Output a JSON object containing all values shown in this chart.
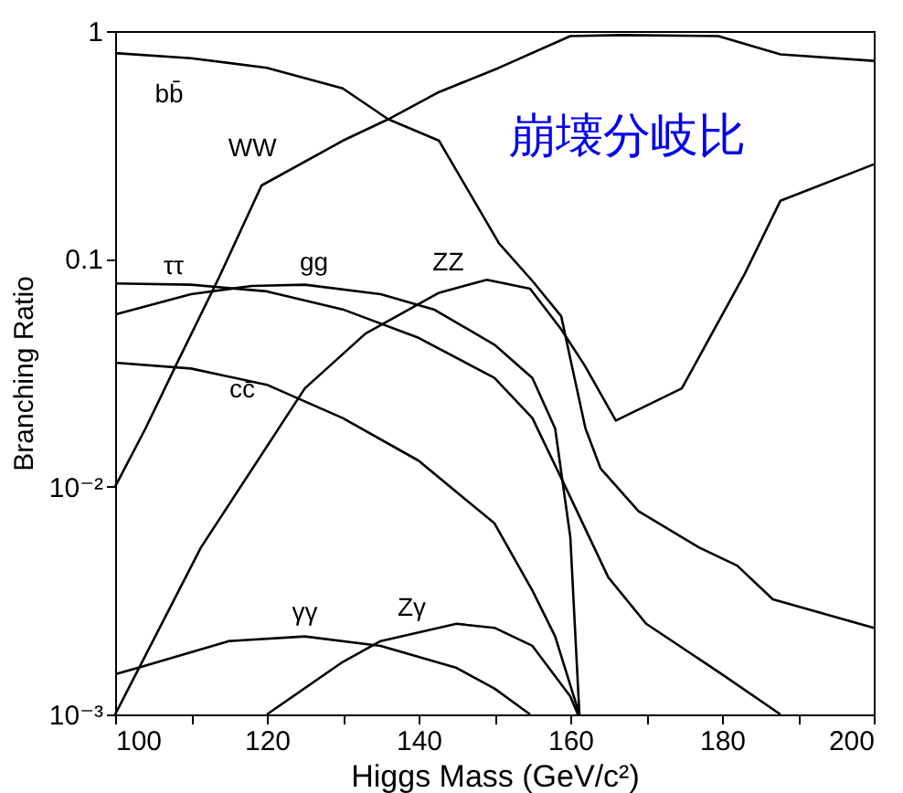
{
  "chart_data": {
    "type": "line",
    "xlabel": "Higgs Mass (GeV/c²)",
    "ylabel": "Branching Ratio",
    "annotations": [
      "崩壊分岐比"
    ],
    "log": true,
    "grid": false,
    "line_style": "solid",
    "marker": "none",
    "xlim": [
      100,
      200
    ],
    "xticks": [
      100,
      {
        "value": 110,
        "label": null
      },
      120,
      {
        "value": 130,
        "label": null
      },
      140,
      {
        "value": 150,
        "label": null
      },
      160,
      {
        "value": 170,
        "label": null
      },
      180,
      {
        "value": 190,
        "label": null
      },
      200
    ],
    "ylim": [
      0.001,
      1
    ],
    "yticks": [
      {
        "value": 0.001,
        "label": "10⁻³"
      },
      {
        "value": 0.01,
        "label": "10⁻²"
      },
      0.1,
      1
    ],
    "series": [
      {
        "name": "bb̄",
        "color": "#000000",
        "x": [
          100,
          110,
          120,
          130,
          136,
          142.7,
          150.6,
          155,
          158.8,
          160.2,
          162,
          164,
          169,
          177,
          182,
          186.7,
          200
        ],
        "values": [
          0.8,
          0.76,
          0.69,
          0.56,
          0.41,
          0.33,
          0.117,
          0.08,
          0.056,
          0.034,
          0.018,
          0.012,
          0.0078,
          0.0054,
          0.0045,
          0.0032,
          0.0024
        ]
      },
      {
        "name": "WW",
        "color": "#000000",
        "x": [
          100,
          104,
          108,
          113.7,
          119.3,
          130,
          136,
          142.7,
          150.6,
          160,
          166.7,
          179.5,
          187.7,
          200
        ],
        "values": [
          0.01,
          0.018,
          0.034,
          0.083,
          0.21,
          0.33,
          0.41,
          0.54,
          0.69,
          0.95,
          0.96,
          0.95,
          0.79,
          0.74
        ]
      },
      {
        "name": "ττ",
        "color": "#000000",
        "x": [
          100,
          110,
          120,
          130,
          140,
          150,
          155,
          160,
          165,
          170,
          180,
          187.7
        ],
        "values": [
          0.078,
          0.077,
          0.072,
          0.06,
          0.045,
          0.03,
          0.02,
          0.009,
          0.004,
          0.0025,
          0.0015,
          0.001
        ]
      },
      {
        "name": "gg",
        "color": "#000000",
        "x": [
          100,
          110,
          118,
          125,
          135,
          142,
          150,
          155,
          158,
          160,
          161.2
        ],
        "values": [
          0.057,
          0.07,
          0.076,
          0.077,
          0.07,
          0.06,
          0.042,
          0.03,
          0.018,
          0.006,
          0.001
        ]
      },
      {
        "name": "ZZ",
        "color": "#000000",
        "x": [
          100,
          111.3,
          125,
          133,
          142.7,
          149,
          154.7,
          158.8,
          161.9,
          166,
          174.7,
          183,
          187.7,
          200
        ],
        "values": [
          0.001,
          0.0054,
          0.027,
          0.047,
          0.071,
          0.081,
          0.074,
          0.049,
          0.034,
          0.0195,
          0.027,
          0.086,
          0.18,
          0.26
        ]
      },
      {
        "name": "cc̄",
        "color": "#000000",
        "x": [
          100,
          110,
          120,
          130,
          140,
          150,
          155,
          158,
          161.2
        ],
        "values": [
          0.035,
          0.033,
          0.028,
          0.02,
          0.013,
          0.0069,
          0.0035,
          0.0022,
          0.001
        ]
      },
      {
        "name": "γγ",
        "color": "#000000",
        "x": [
          100,
          103,
          115,
          125,
          135,
          145,
          150,
          154.7
        ],
        "values": [
          0.0015,
          0.0016,
          0.0021,
          0.0022,
          0.002,
          0.0016,
          0.0013,
          0.001
        ]
      },
      {
        "name": "Zγ",
        "color": "#000000",
        "x": [
          120,
          130,
          135,
          145,
          150,
          155,
          160,
          161
        ],
        "values": [
          0.001,
          0.0017,
          0.0021,
          0.0025,
          0.0024,
          0.002,
          0.0012,
          0.001
        ]
      }
    ]
  }
}
